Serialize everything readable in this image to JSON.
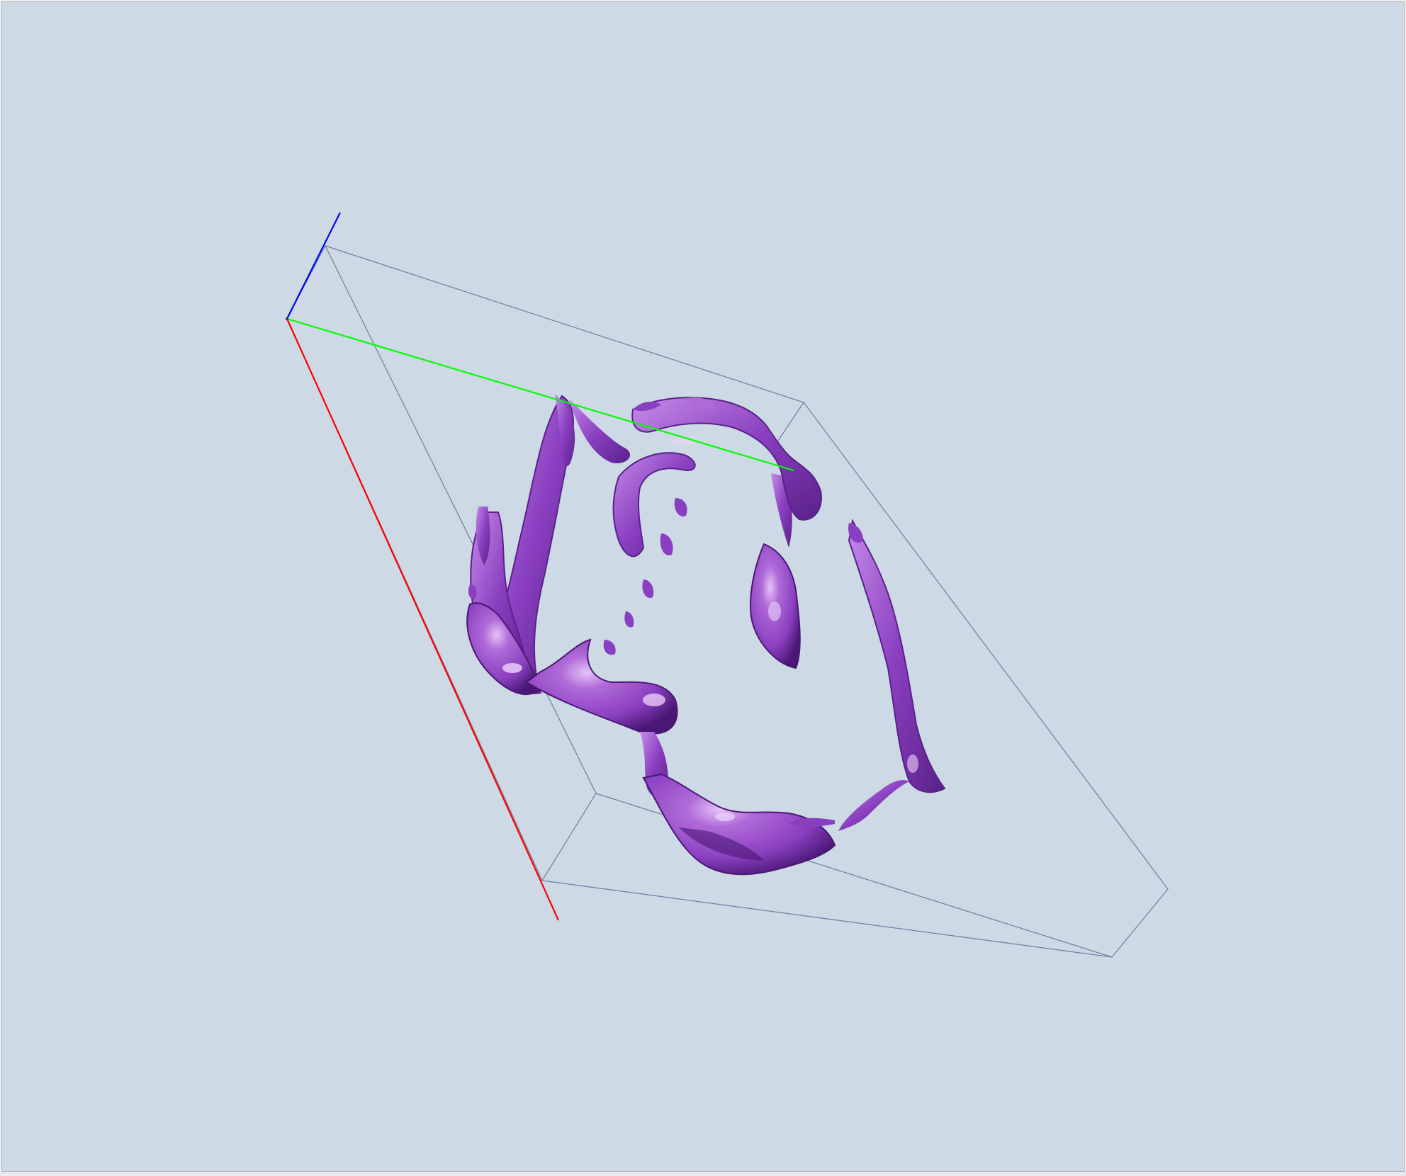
{
  "viewer": {
    "background_color": "#cdd9e5",
    "bounding_box_color": "#6b7f9e",
    "surface_color": "#8a3fc0",
    "surface_highlight_color": "#c58be8",
    "surface_shadow_color": "#4a1775"
  },
  "axes": {
    "x_axis_color": "#ff0000",
    "y_axis_color": "#00ff00",
    "z_axis_color": "#0000ff"
  },
  "icons": {
    "origin": "axis-origin-icon"
  }
}
